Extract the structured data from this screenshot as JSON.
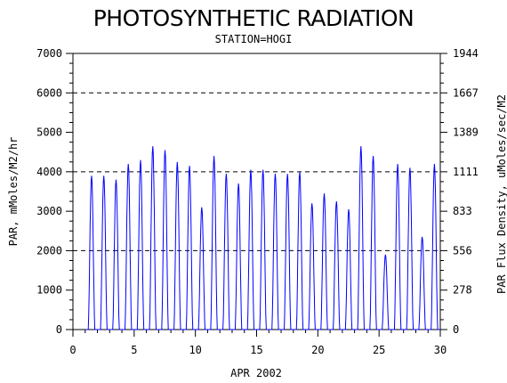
{
  "chart_data": {
    "type": "line",
    "title": "PHOTOSYNTHETIC RADIATION",
    "subtitle": "STATION=HOGI",
    "xlabel": "APR 2002",
    "ylabel": "PAR, mMoles/M2/hr",
    "y2label": "PAR Flux Density, uMoles/sec/M2",
    "xlim": [
      0,
      30
    ],
    "ylim": [
      0,
      7000
    ],
    "x_ticks": [
      0,
      5,
      10,
      15,
      20,
      25,
      30
    ],
    "y_ticks": [
      0,
      1000,
      2000,
      3000,
      4000,
      5000,
      6000,
      7000
    ],
    "y2_ticks": [
      "0",
      "278",
      "556",
      "833",
      "1111",
      "1389",
      "1667",
      "1944"
    ],
    "gridlines_y": [
      2000,
      4000,
      6000
    ],
    "line_color": "#0000ff",
    "series": [
      {
        "daily_peaks": [
          {
            "day": 1,
            "peak": 3900
          },
          {
            "day": 2,
            "peak": 3900
          },
          {
            "day": 3,
            "peak": 3800
          },
          {
            "day": 4,
            "peak": 4200
          },
          {
            "day": 5,
            "peak": 4300
          },
          {
            "day": 6,
            "peak": 4650
          },
          {
            "day": 7,
            "peak": 4550
          },
          {
            "day": 8,
            "peak": 4250
          },
          {
            "day": 9,
            "peak": 4150
          },
          {
            "day": 10,
            "peak": 3100
          },
          {
            "day": 11,
            "peak": 4400
          },
          {
            "day": 12,
            "peak": 3950
          },
          {
            "day": 13,
            "peak": 3700
          },
          {
            "day": 14,
            "peak": 4050
          },
          {
            "day": 15,
            "peak": 4050
          },
          {
            "day": 16,
            "peak": 3950
          },
          {
            "day": 17,
            "peak": 3950
          },
          {
            "day": 18,
            "peak": 4000
          },
          {
            "day": 19,
            "peak": 3200
          },
          {
            "day": 20,
            "peak": 3450
          },
          {
            "day": 21,
            "peak": 3250
          },
          {
            "day": 22,
            "peak": 3050
          },
          {
            "day": 23,
            "peak": 4650
          },
          {
            "day": 24,
            "peak": 4400
          },
          {
            "day": 25,
            "peak": 1900
          },
          {
            "day": 26,
            "peak": 4200
          },
          {
            "day": 27,
            "peak": 4100
          },
          {
            "day": 28,
            "peak": 2350
          },
          {
            "day": 29,
            "peak": 4200
          }
        ]
      }
    ]
  }
}
